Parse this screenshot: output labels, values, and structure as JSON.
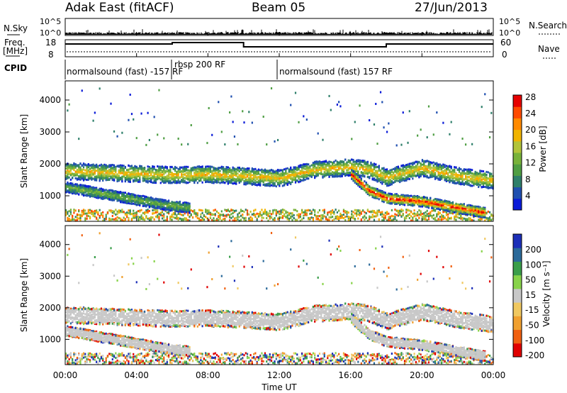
{
  "header": {
    "station": "Adak East (fitACF)",
    "beam": "Beam 05",
    "date": "27/Jun/2013"
  },
  "panels": {
    "nsky": {
      "label": "N.Sky",
      "right_label": "N.Search",
      "left_ticks": [
        "10^5",
        "10^0"
      ],
      "right_ticks": [
        "10^5",
        "10^0"
      ]
    },
    "freq": {
      "label_top": "Freq.",
      "label_unit": "[MHz]",
      "right_label": "Nave",
      "left_ticks": [
        "18",
        "8"
      ],
      "right_ticks": [
        "60",
        "0"
      ]
    },
    "cpid": {
      "label": "CPID",
      "segments": [
        {
          "text": "normalsound (fast) -157 RF",
          "start": 0.0
        },
        {
          "text": "rbsp 200 RF",
          "start": 6.0
        },
        {
          "text": "normalsound (fast) 157 RF",
          "start": 12.0
        }
      ]
    }
  },
  "xaxis": {
    "label": "Time UT",
    "ticks": [
      "00:00",
      "04:00",
      "08:00",
      "12:00",
      "16:00",
      "20:00",
      "00:00"
    ]
  },
  "chart_data": [
    {
      "type": "heatmap",
      "name": "power",
      "ylabel": "Slant Range [km]",
      "yticks": [
        1000,
        2000,
        3000,
        4000
      ],
      "ylim": [
        200,
        4600
      ],
      "xlim": [
        0,
        24
      ],
      "colorbar": {
        "label": "Power [dB]",
        "ticks": [
          4,
          8,
          12,
          16,
          20,
          24,
          28
        ],
        "colors": [
          "#0a1bd8",
          "#1f4fb0",
          "#2e7f6a",
          "#4f9e43",
          "#78b23a",
          "#b2c43a",
          "#f0b400",
          "#ff8a00",
          "#ff4a00",
          "#e60000"
        ]
      },
      "bands": [
        {
          "t": [
            0,
            2,
            4,
            6,
            8,
            10,
            12,
            14,
            16,
            17,
            18,
            20,
            22,
            24
          ],
          "r": [
            1800,
            1760,
            1720,
            1680,
            1700,
            1650,
            1580,
            1850,
            1920,
            1850,
            1600,
            1900,
            1650,
            1500
          ],
          "level": 0.62
        },
        {
          "t": [
            0,
            2,
            4,
            5.5,
            7
          ],
          "r": [
            1300,
            1100,
            900,
            750,
            650
          ],
          "level": 0.38
        },
        {
          "t": [
            16,
            17,
            18,
            20,
            22,
            23.5
          ],
          "r": [
            1700,
            1200,
            950,
            850,
            650,
            500
          ],
          "level": 0.9
        }
      ]
    },
    {
      "type": "heatmap",
      "name": "velocity",
      "ylabel": "Slant Range [km]",
      "yticks": [
        1000,
        2000,
        3000,
        4000
      ],
      "ylim": [
        200,
        4600
      ],
      "xlim": [
        0,
        24
      ],
      "colorbar": {
        "label": "Velocity [m s⁻¹]",
        "ticks": [
          "200",
          "100",
          "50",
          "15",
          "-15",
          "-50",
          "-100",
          "-200"
        ],
        "colors": [
          "#1c2fb8",
          "#2b6a9a",
          "#3a9e4a",
          "#88d34a",
          "#c8c8c8",
          "#f0c860",
          "#f0a030",
          "#f06010",
          "#e00000"
        ]
      }
    }
  ]
}
